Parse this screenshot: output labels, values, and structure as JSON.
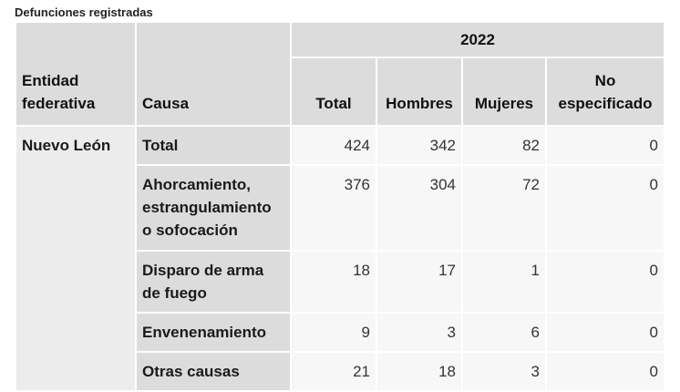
{
  "caption": "Defunciones registradas",
  "header": {
    "year": "2022",
    "entidad": "Entidad federativa",
    "causa": "Causa",
    "total": "Total",
    "hombres": "Hombres",
    "mujeres": "Mujeres",
    "no_especificado": "No especificado"
  },
  "entidad": "Nuevo León",
  "rows": [
    {
      "causa": "Total",
      "total": "424",
      "hombres": "342",
      "mujeres": "82",
      "no_especificado": "0"
    },
    {
      "causa": "Ahorcamiento, estrangulamiento o sofocación",
      "total": "376",
      "hombres": "304",
      "mujeres": "72",
      "no_especificado": "0"
    },
    {
      "causa": "Disparo de arma de fuego",
      "total": "18",
      "hombres": "17",
      "mujeres": "1",
      "no_especificado": "0"
    },
    {
      "causa": "Envenenamiento",
      "total": "9",
      "hombres": "3",
      "mujeres": "6",
      "no_especificado": "0"
    },
    {
      "causa": "Otras causas",
      "total": "21",
      "hombres": "18",
      "mujeres": "3",
      "no_especificado": "0"
    }
  ]
}
